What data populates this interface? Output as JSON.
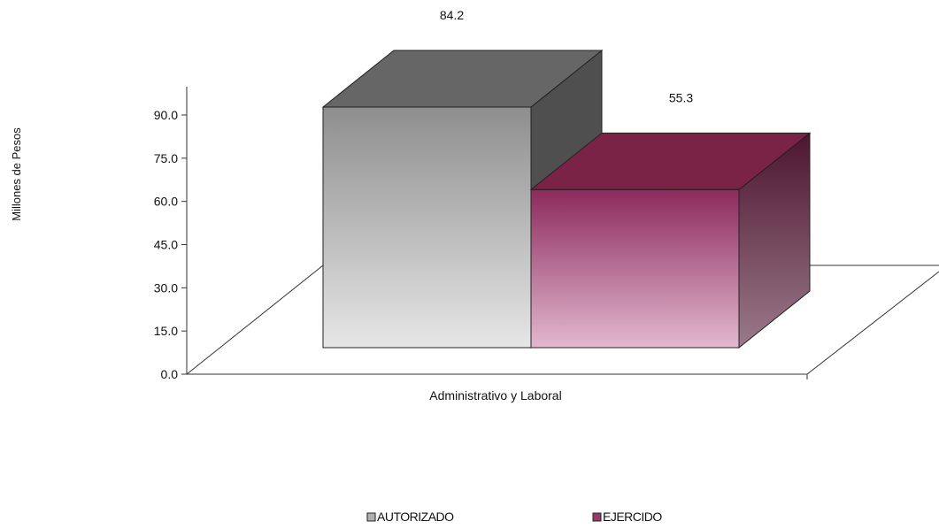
{
  "chart_data": {
    "type": "bar",
    "style": "3d-clustered",
    "categories": [
      "Administrativo y Laboral"
    ],
    "series": [
      {
        "name": "AUTORIZADO",
        "values": [
          84.2
        ],
        "colors": {
          "front_top": "#8e8e8e",
          "front_bottom": "#e6e6e6",
          "top": "#666666",
          "side": "#4f4f4f"
        }
      },
      {
        "name": "EJERCIDO",
        "values": [
          55.3
        ],
        "colors": {
          "front_top": "#8c2a5c",
          "front_bottom": "#e2b8cf",
          "top": "#7a2346",
          "side": "#4d1530"
        }
      }
    ],
    "data_labels": [
      "84.2",
      "55.3"
    ],
    "ylabel": "Millones de Pesos",
    "xlabel": "",
    "ylim": [
      0,
      90
    ],
    "yticks": [
      "0.0",
      "15.0",
      "30.0",
      "45.0",
      "60.0",
      "75.0",
      "90.0"
    ],
    "grid": false,
    "legend_position": "bottom"
  }
}
